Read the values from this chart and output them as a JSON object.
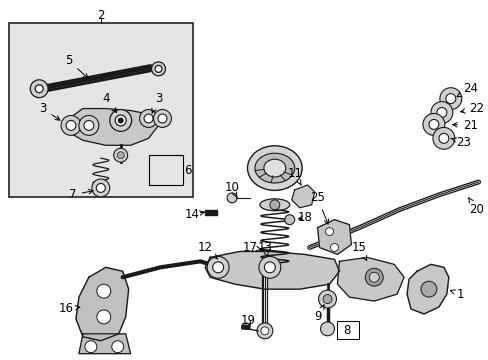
{
  "background_color": "#ffffff",
  "inset_bg": "#e8e8e8",
  "line_color": "#1a1a1a",
  "fig_width": 4.89,
  "fig_height": 3.6,
  "dpi": 100,
  "font_size": 8.5
}
